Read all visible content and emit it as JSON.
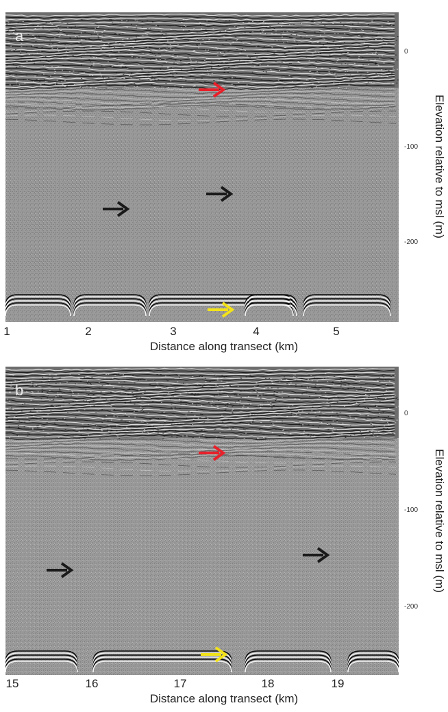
{
  "figure": {
    "panels": [
      {
        "letter": "a",
        "y_ticks": [
          "0",
          "-100",
          "-200"
        ],
        "y_label": "Elevation relative to msl (m)",
        "x_ticks": [
          "1",
          "2",
          "3",
          "4",
          "5"
        ],
        "x_label": "Distance along transect (km)",
        "arrows": [
          {
            "color": "#e8202a",
            "label": "red"
          },
          {
            "color": "#1a1a1a",
            "label": "black"
          },
          {
            "color": "#1a1a1a",
            "label": "black"
          },
          {
            "color": "#f2e21a",
            "label": "yellow"
          }
        ]
      },
      {
        "letter": "b",
        "y_ticks": [
          "0",
          "-100",
          "-200"
        ],
        "y_label": "Elevation relative to msl (m)",
        "x_ticks": [
          "15",
          "16",
          "17",
          "18",
          "19"
        ],
        "x_label": "Distance along transect (km)",
        "arrows": [
          {
            "color": "#e8202a",
            "label": "red"
          },
          {
            "color": "#1a1a1a",
            "label": "black"
          },
          {
            "color": "#1a1a1a",
            "label": "black"
          },
          {
            "color": "#f2e21a",
            "label": "yellow"
          }
        ]
      }
    ]
  }
}
